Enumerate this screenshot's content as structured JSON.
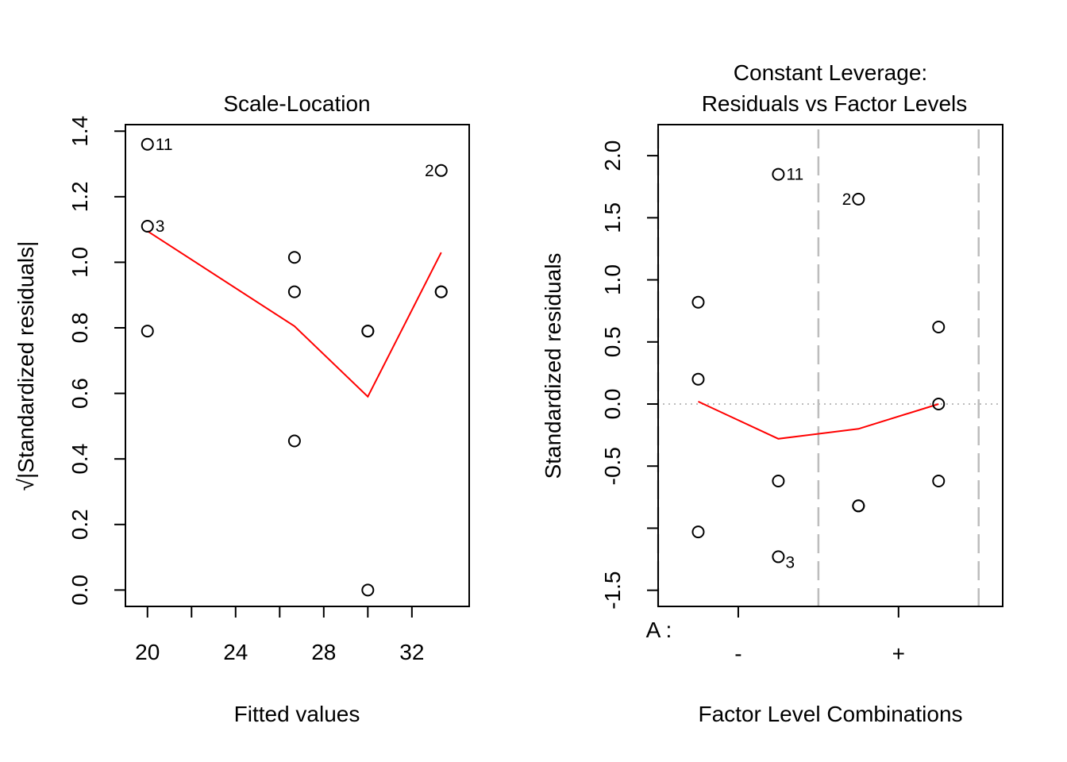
{
  "chart_data": [
    {
      "type": "scatter",
      "title": "Scale-Location",
      "xlabel": "Fitted values",
      "ylabel": "√|Standardized residuals|",
      "xlim": [
        19.0,
        34.6
      ],
      "ylim": [
        -0.05,
        1.42
      ],
      "xticks": [
        20,
        22,
        24,
        26,
        28,
        30,
        32
      ],
      "xtick_labels": [
        {
          "x": 20,
          "label": "20"
        },
        {
          "x": 24,
          "label": "24"
        },
        {
          "x": 28,
          "label": "28"
        },
        {
          "x": 32,
          "label": "32"
        }
      ],
      "yticks": [
        "0.0",
        "0.2",
        "0.4",
        "0.6",
        "0.8",
        "1.0",
        "1.2",
        "1.4"
      ],
      "points": [
        {
          "x": 20.0,
          "y": 1.36,
          "label": "11",
          "label_side": "right"
        },
        {
          "x": 20.0,
          "y": 1.11,
          "label": "3",
          "label_side": "right"
        },
        {
          "x": 20.0,
          "y": 0.79,
          "label": ""
        },
        {
          "x": 26.67,
          "y": 1.015,
          "label": ""
        },
        {
          "x": 26.67,
          "y": 0.91,
          "label": ""
        },
        {
          "x": 26.67,
          "y": 0.455,
          "label": ""
        },
        {
          "x": 30.0,
          "y": 0.79,
          "label": ""
        },
        {
          "x": 30.0,
          "y": 0.79,
          "label": ""
        },
        {
          "x": 30.0,
          "y": 0.0,
          "label": ""
        },
        {
          "x": 33.33,
          "y": 1.28,
          "label": "2",
          "label_side": "left"
        },
        {
          "x": 33.33,
          "y": 0.91,
          "label": ""
        },
        {
          "x": 33.33,
          "y": 0.91,
          "label": ""
        }
      ],
      "smoother": {
        "x": [
          20.0,
          26.67,
          30.0,
          33.33
        ],
        "y": [
          1.095,
          0.805,
          0.59,
          1.03
        ],
        "color": "#ff0000"
      }
    },
    {
      "type": "scatter",
      "title": [
        "Constant Leverage:",
        "Residuals vs Factor Levels"
      ],
      "xlabel": "Factor Level Combinations",
      "ylabel": "Standardized residuals",
      "xlim": [
        0.5,
        4.8
      ],
      "ylim": [
        -1.63,
        2.25
      ],
      "yticks": [
        "-1.5",
        "-0.5",
        "0.0",
        "0.5",
        "1.0",
        "1.5",
        "2.0"
      ],
      "ytick_marks": [
        -1.5,
        -1.0,
        -0.5,
        0.0,
        0.5,
        1.0,
        1.5,
        2.0
      ],
      "factor_label": "A :",
      "factor_levels": [
        {
          "label": "-",
          "x": 1.5
        },
        {
          "label": "+",
          "x": 3.5
        }
      ],
      "group_separators": [
        0.5,
        2.5,
        4.5
      ],
      "zero_line": 0.0,
      "points": [
        {
          "x": 1,
          "y": 0.82,
          "label": ""
        },
        {
          "x": 1,
          "y": 0.2,
          "label": ""
        },
        {
          "x": 1,
          "y": -1.03,
          "label": ""
        },
        {
          "x": 2,
          "y": 1.85,
          "label": "11",
          "label_side": "right"
        },
        {
          "x": 2,
          "y": -0.62,
          "label": ""
        },
        {
          "x": 2,
          "y": -1.23,
          "label": "3",
          "label_side": "below-right"
        },
        {
          "x": 3,
          "y": 1.65,
          "label": "2",
          "label_side": "left"
        },
        {
          "x": 3,
          "y": -0.82,
          "label": ""
        },
        {
          "x": 3,
          "y": -0.82,
          "label": ""
        },
        {
          "x": 4,
          "y": 0.62,
          "label": ""
        },
        {
          "x": 4,
          "y": 0.0,
          "label": ""
        },
        {
          "x": 4,
          "y": -0.62,
          "label": ""
        }
      ],
      "smoother": {
        "x": [
          1,
          2,
          3,
          4
        ],
        "y": [
          0.02,
          -0.28,
          -0.2,
          0.0
        ],
        "color": "#ff0000"
      }
    }
  ]
}
